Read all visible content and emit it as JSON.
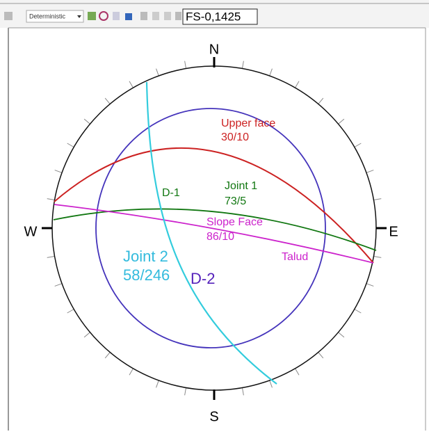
{
  "toolbar": {
    "mode": "Deterministic",
    "fs_field": "FS-0,1425"
  },
  "compass": {
    "north": "N",
    "south": "S",
    "east": "E",
    "west": "W"
  },
  "planes": {
    "upper_face": {
      "name": "Upper face",
      "orientation": "30/10"
    },
    "joint_1": {
      "name": "Joint 1",
      "orientation": "73/5",
      "tag": "D-1"
    },
    "slope_face": {
      "name": "Slope Face",
      "orientation": "86/10",
      "tag": "Talud"
    },
    "joint_2": {
      "name": "Joint 2",
      "orientation": "58/246",
      "tag": "D-2"
    }
  }
}
